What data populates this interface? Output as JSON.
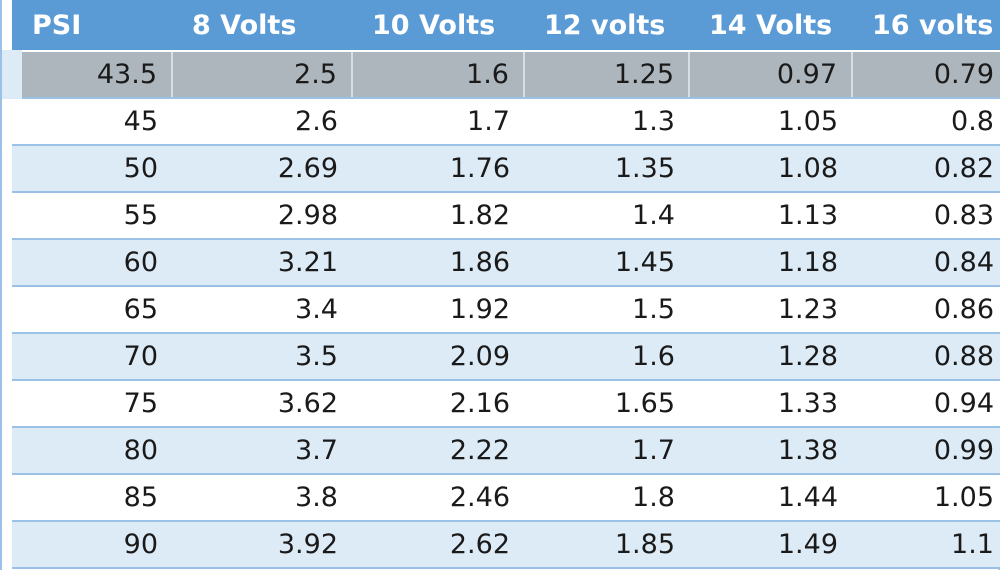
{
  "table": {
    "headers": [
      "PSI",
      "8 Volts",
      "10 Volts",
      "12 volts",
      "14 Volts",
      "16 volts"
    ],
    "rows": [
      [
        "43.5",
        "2.5",
        "1.6",
        "1.25",
        "0.97",
        "0.79"
      ],
      [
        "45",
        "2.6",
        "1.7",
        "1.3",
        "1.05",
        "0.8"
      ],
      [
        "50",
        "2.69",
        "1.76",
        "1.35",
        "1.08",
        "0.82"
      ],
      [
        "55",
        "2.98",
        "1.82",
        "1.4",
        "1.13",
        "0.83"
      ],
      [
        "60",
        "3.21",
        "1.86",
        "1.45",
        "1.18",
        "0.84"
      ],
      [
        "65",
        "3.4",
        "1.92",
        "1.5",
        "1.23",
        "0.86"
      ],
      [
        "70",
        "3.5",
        "2.09",
        "1.6",
        "1.28",
        "0.88"
      ],
      [
        "75",
        "3.62",
        "2.16",
        "1.65",
        "1.33",
        "0.94"
      ],
      [
        "80",
        "3.7",
        "2.22",
        "1.7",
        "1.38",
        "0.99"
      ],
      [
        "85",
        "3.8",
        "2.46",
        "1.8",
        "1.44",
        "1.05"
      ],
      [
        "90",
        "3.92",
        "2.62",
        "1.85",
        "1.49",
        "1.1"
      ]
    ],
    "selected_row": 0
  },
  "colors": {
    "header_bg": "#5b9bd5",
    "band_bg": "#ddebf7",
    "selected_bg": "#adb5bd",
    "border": "#9bc2e6"
  }
}
